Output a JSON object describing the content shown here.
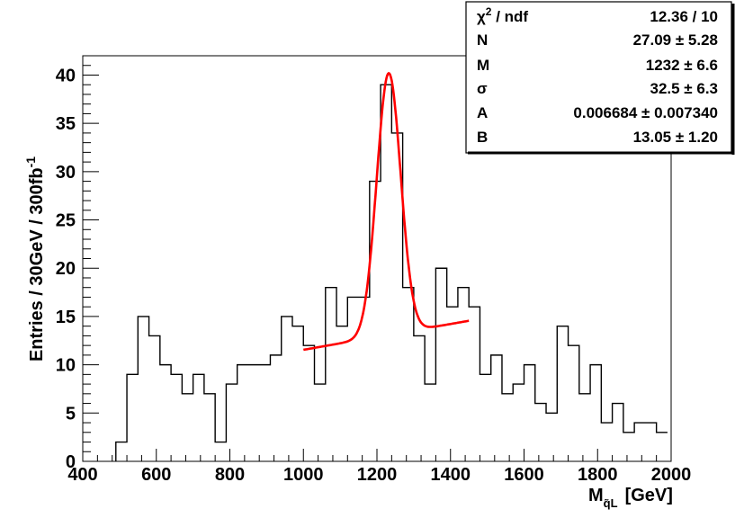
{
  "chart_data": {
    "type": "histogram",
    "title": "",
    "xlabel": "M",
    "xlabel_sub": "q̃L",
    "xlabel_unit": "[GeV]",
    "ylabel": "Entries / 30GeV / 300fb-1",
    "xlim": [
      400,
      2000
    ],
    "ylim": [
      0,
      42
    ],
    "x_ticks": [
      400,
      600,
      800,
      1000,
      1200,
      1400,
      1600,
      1800,
      2000
    ],
    "y_ticks": [
      0,
      5,
      10,
      15,
      20,
      25,
      30,
      35,
      40
    ],
    "grid": false,
    "bin_width": 30,
    "bins_start": 490,
    "values": [
      2,
      9,
      15,
      13,
      10,
      9,
      7,
      9,
      7,
      2,
      8,
      10,
      10,
      10,
      11,
      15,
      14,
      12,
      8,
      18,
      14,
      17,
      17,
      29,
      39,
      34,
      18,
      13,
      8,
      20,
      16,
      18,
      16,
      9,
      11,
      7,
      8,
      10,
      6,
      5,
      14,
      12,
      7,
      10,
      4,
      6,
      3,
      4,
      4,
      3
    ],
    "fit": {
      "name": "Gaussian + linear background",
      "x_range": [
        1000,
        1450
      ],
      "params": {
        "N": 27.09,
        "M": 1232,
        "sigma": 32.5,
        "A": 0.006684,
        "B": 13.05
      },
      "color": "#ff0000"
    },
    "histogram_color": "#000000"
  },
  "stats_box": {
    "rows": [
      {
        "label_main": "χ",
        "label_sup": "2",
        "label_rest": " / ndf",
        "value": "12.36 / 10"
      },
      {
        "label_main": "N",
        "label_sup": "",
        "label_rest": "",
        "value": "27.09 ± 5.28"
      },
      {
        "label_main": "M",
        "label_sup": "",
        "label_rest": "",
        "value": "1232 ± 6.6"
      },
      {
        "label_main": "σ",
        "label_sup": "",
        "label_rest": "",
        "value": "32.5 ± 6.3"
      },
      {
        "label_main": "A",
        "label_sup": "",
        "label_rest": "",
        "value": "0.006684 ± 0.007340"
      },
      {
        "label_main": "B",
        "label_sup": "",
        "label_rest": "",
        "value": "13.05 ± 1.20"
      }
    ]
  }
}
